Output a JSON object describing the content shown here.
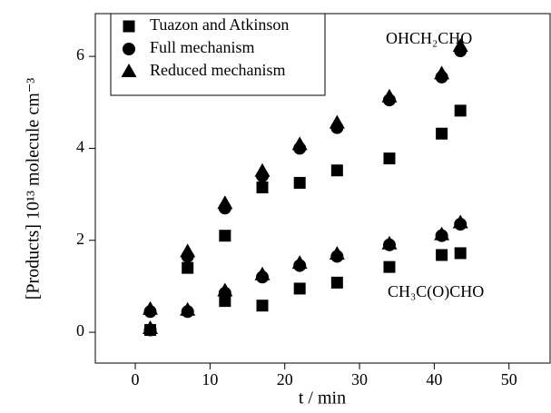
{
  "chart_data": {
    "type": "scatter",
    "x_label": "t / min",
    "y_label": "[Products] 10¹³ molecule cm⁻³",
    "annotations": [
      "OHCH₂CHO",
      "CH₃C(O)CHO"
    ],
    "xlim": [
      -5.35,
      55.5
    ],
    "xticks": [
      0,
      10,
      20,
      30,
      40,
      50
    ],
    "ylim": [
      -0.67,
      6.93
    ],
    "yticks": [
      0,
      2,
      4,
      6
    ],
    "legend": "upper left",
    "series": [
      {
        "name": "Tuazon and Atkinson",
        "marker": "square",
        "color": "#000000",
        "x": [
          2,
          7,
          12,
          12,
          17,
          17,
          22,
          22,
          27,
          27,
          34,
          34,
          41,
          41,
          43.5,
          43.5
        ],
        "y": [
          0.05,
          1.4,
          2.1,
          0.68,
          3.15,
          0.58,
          3.25,
          0.95,
          3.52,
          1.08,
          3.78,
          1.42,
          4.32,
          1.68,
          4.82,
          1.72
        ]
      },
      {
        "name": "Full mechanism",
        "marker": "circle",
        "color": "#000000",
        "x": [
          2,
          7,
          12,
          17,
          22,
          27,
          34,
          41,
          43.5,
          2,
          7,
          12,
          17,
          22,
          27,
          34,
          41,
          43.5
        ],
        "y": [
          0.45,
          1.65,
          2.7,
          3.4,
          4.0,
          4.45,
          5.05,
          5.55,
          6.12,
          0.05,
          0.45,
          0.85,
          1.2,
          1.45,
          1.65,
          1.9,
          2.1,
          2.35
        ]
      },
      {
        "name": "Reduced mechanism",
        "marker": "triangle",
        "color": "#000000",
        "x": [
          2,
          7,
          12,
          17,
          22,
          27,
          34,
          41,
          43.5,
          2,
          7,
          12,
          17,
          22,
          27,
          34,
          41,
          43.5
        ],
        "y": [
          0.5,
          1.75,
          2.8,
          3.5,
          4.08,
          4.55,
          5.12,
          5.62,
          6.22,
          0.08,
          0.48,
          0.9,
          1.25,
          1.5,
          1.7,
          1.92,
          2.12,
          2.38
        ]
      }
    ]
  }
}
